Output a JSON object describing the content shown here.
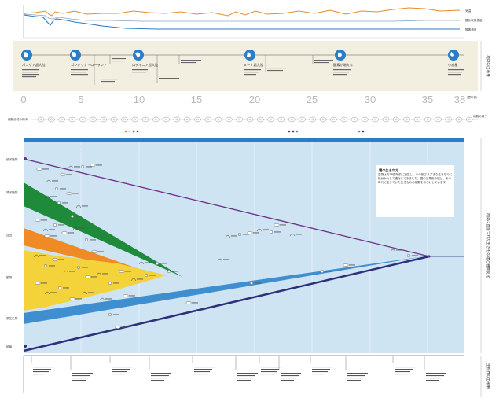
{
  "colors": {
    "temperature": "#e98a2a",
    "co2": "#8aa6bf",
    "sea_level": "#2a7ec7",
    "band_bg": "#f2eee0",
    "main_bg": "#cfe4f3",
    "purple": "#6b2f86",
    "navy": "#2e2f7a",
    "blue_band": "#3f8ed0",
    "green": "#1e8a3a",
    "orange": "#f08a24",
    "yellow": "#f3d23a"
  },
  "top_lines": {
    "temperature_label": "気温",
    "co2_label": "酸化炭素濃度",
    "sea_level_label": "酸素濃度"
  },
  "right_labels": {
    "band1": "地球の出来事",
    "main": "時間に直面つれた生きもの達と種数変化",
    "bottom": "生物界の出来事"
  },
  "axis": {
    "ticks": [
      "0",
      "5",
      "10",
      "15",
      "20",
      "25",
      "30",
      "35",
      "38"
    ],
    "unit": "(億年前)"
  },
  "events": [
    {
      "id": "e1",
      "label": "パンゲア超大陸"
    },
    {
      "id": "e2",
      "label": "ゴンドワナ・ローラシア"
    },
    {
      "id": "e3",
      "label": "ロディニア超大陸"
    },
    {
      "id": "e4",
      "label": "ヌーナ超大陸"
    },
    {
      "id": "e5",
      "label": "酸素が増える"
    },
    {
      "id": "e6",
      "label": "小惑星"
    }
  ],
  "timeline_row": {
    "left_label": "細胞分裂の様子",
    "right_label": "細胞の様子"
  },
  "info_box": {
    "title": "種の生まれ方",
    "body": "生物は約38億年前に誕生し、その後さまざまな生きものに枝分かれして進化してきました。図の三角形の幅は、その時代に生きていた生きものの種数をあらわしています。"
  },
  "side_categories": [
    {
      "id": "c1",
      "label": "被子植物"
    },
    {
      "id": "c2",
      "label": "裸子植物"
    },
    {
      "id": "c3",
      "label": "昆虫"
    },
    {
      "id": "c4",
      "label": "動物"
    },
    {
      "id": "c5",
      "label": "原生生物"
    },
    {
      "id": "c6",
      "label": "細菌"
    }
  ]
}
